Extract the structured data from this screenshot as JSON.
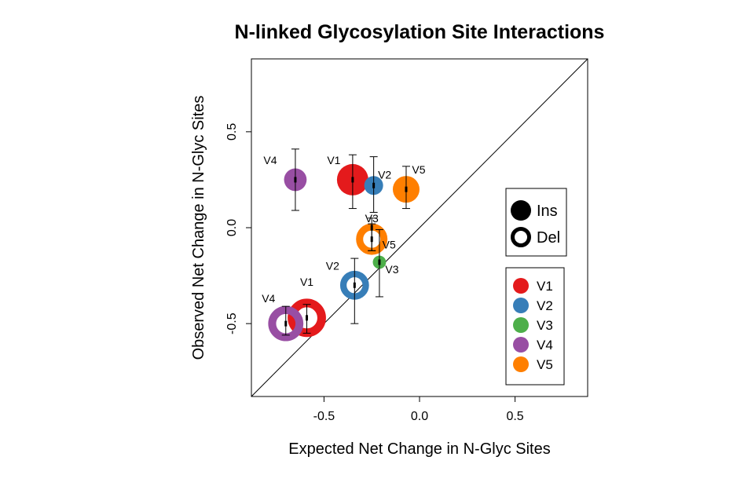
{
  "chart_data": {
    "type": "scatter",
    "title": "N-linked Glycosylation Site Interactions",
    "xlabel": "Expected Net Change in N-Glyc Sites",
    "ylabel": "Observed Net Change in N-Glyc Sites",
    "xlim": [
      -0.88,
      0.88
    ],
    "ylim": [
      -0.88,
      0.88
    ],
    "xticks": [
      -0.5,
      0.0,
      0.5
    ],
    "xtick_labels": [
      "-0.5",
      "0.0",
      "0.5"
    ],
    "yticks": [
      -0.5,
      0.0,
      0.5
    ],
    "ytick_labels": [
      "-0.5",
      "0.0",
      "0.5"
    ],
    "reference_line": "y = x",
    "colors": {
      "V1": "#e41a1c",
      "V2": "#377eb8",
      "V3": "#4daf4a",
      "V4": "#984ea3",
      "V5": "#ff7f00"
    },
    "size_legend": [
      {
        "label": "Ins",
        "style": "filled"
      },
      {
        "label": "Del",
        "style": "open"
      }
    ],
    "color_legend": [
      "V1",
      "V2",
      "V3",
      "V4",
      "V5"
    ],
    "points": [
      {
        "region": "V1",
        "type": "Ins",
        "x": -0.35,
        "y": 0.25,
        "ylow": 0.1,
        "yhigh": 0.38,
        "size": 1.0,
        "label": "V1"
      },
      {
        "region": "V2",
        "type": "Ins",
        "x": -0.24,
        "y": 0.22,
        "ylow": 0.08,
        "yhigh": 0.37,
        "size": 0.6,
        "label": "V2"
      },
      {
        "region": "V4",
        "type": "Ins",
        "x": -0.65,
        "y": 0.25,
        "ylow": 0.09,
        "yhigh": 0.41,
        "size": 0.72,
        "label": "V4"
      },
      {
        "region": "V5",
        "type": "Ins",
        "x": -0.07,
        "y": 0.2,
        "ylow": 0.1,
        "yhigh": 0.32,
        "size": 0.85,
        "label": "V5"
      },
      {
        "region": "V3",
        "type": "Ins",
        "x": -0.21,
        "y": -0.18,
        "ylow": -0.36,
        "yhigh": -0.01,
        "size": 0.42,
        "label": "V3"
      },
      {
        "region": "V3",
        "type": "Del",
        "x": -0.25,
        "y": 0.0,
        "ylow": -0.12,
        "yhigh": 0.05,
        "size": 0.2,
        "label": "V3"
      },
      {
        "region": "V5",
        "type": "Del",
        "x": -0.25,
        "y": -0.06,
        "ylow": -0.12,
        "yhigh": 0.02,
        "size": 1.0,
        "label": "V5"
      },
      {
        "region": "V2",
        "type": "Del",
        "x": -0.34,
        "y": -0.3,
        "ylow": -0.5,
        "yhigh": -0.16,
        "size": 0.92,
        "label": "V2"
      },
      {
        "region": "V1",
        "type": "Del",
        "x": -0.59,
        "y": -0.47,
        "ylow": -0.55,
        "yhigh": -0.4,
        "size": 1.22,
        "label": "V1"
      },
      {
        "region": "V4",
        "type": "Del",
        "x": -0.7,
        "y": -0.5,
        "ylow": -0.56,
        "yhigh": -0.41,
        "size": 1.12,
        "label": "V4"
      }
    ]
  }
}
